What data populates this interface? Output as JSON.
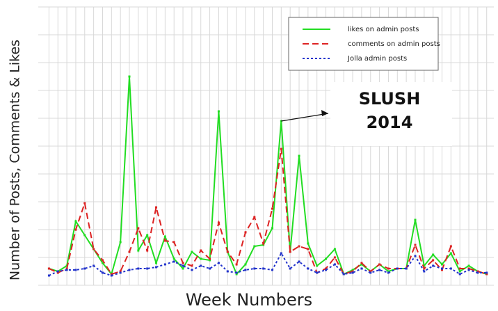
{
  "chart_data": {
    "type": "line",
    "x_label": "Week Numbers",
    "y_label": "Number of Posts, Comments & Likes",
    "annotation": {
      "lines": [
        "SLUSH",
        "2014"
      ],
      "x": 27,
      "y": 5.9
    },
    "x": [
      1,
      2,
      3,
      4,
      5,
      6,
      7,
      8,
      9,
      10,
      11,
      12,
      13,
      14,
      15,
      16,
      17,
      18,
      19,
      20,
      21,
      22,
      23,
      24,
      25,
      26,
      27,
      28,
      29,
      30,
      31,
      32,
      33,
      34,
      35,
      36,
      37,
      38,
      39,
      40,
      41,
      42,
      43,
      44,
      45,
      46,
      47,
      48,
      49,
      50
    ],
    "xlim": [
      -0.2,
      50.8
    ],
    "ylim": [
      0,
      10
    ],
    "yticks": [
      0,
      1,
      2,
      3,
      4,
      5,
      6,
      7,
      8,
      9,
      10
    ],
    "grid": true,
    "legend": "top right",
    "series": [
      {
        "name": "likes on admin posts",
        "color": "#22dd22",
        "dash": "solid",
        "values": [
          0.6,
          0.5,
          0.7,
          2.3,
          1.8,
          1.3,
          0.8,
          0.4,
          1.55,
          7.5,
          1.25,
          1.8,
          0.8,
          1.75,
          0.95,
          0.6,
          1.2,
          0.95,
          0.9,
          6.25,
          1.2,
          0.4,
          0.75,
          1.4,
          1.45,
          2.05,
          5.9,
          1.2,
          4.65,
          1.5,
          0.7,
          0.95,
          1.3,
          0.4,
          0.55,
          0.75,
          0.5,
          0.75,
          0.5,
          0.6,
          0.6,
          2.35,
          0.7,
          1.1,
          0.75,
          1.15,
          0.5,
          0.7,
          0.5,
          0.4
        ]
      },
      {
        "name": "comments on admin posts",
        "color": "#dd2222",
        "dash": "dashed",
        "values": [
          0.6,
          0.45,
          0.6,
          2,
          2.95,
          1.3,
          0.9,
          0.4,
          0.5,
          1.2,
          2.05,
          1.25,
          2.8,
          1.6,
          1.55,
          0.8,
          0.7,
          1.25,
          0.95,
          2.25,
          1.2,
          0.75,
          1.9,
          2.45,
          1.5,
          2.75,
          4.9,
          1.2,
          1.4,
          1.3,
          0.45,
          0.6,
          1,
          0.4,
          0.5,
          0.8,
          0.5,
          0.75,
          0.6,
          0.6,
          0.6,
          1.45,
          0.6,
          0.9,
          0.55,
          1.4,
          0.6,
          0.6,
          0.5,
          0.4
        ]
      },
      {
        "name": "Jolla admin posts",
        "color": "#2233cc",
        "dash": "dotted",
        "values": [
          0.35,
          0.5,
          0.55,
          0.55,
          0.6,
          0.7,
          0.45,
          0.35,
          0.45,
          0.55,
          0.6,
          0.6,
          0.65,
          0.75,
          0.85,
          0.7,
          0.55,
          0.7,
          0.6,
          0.8,
          0.5,
          0.45,
          0.55,
          0.6,
          0.6,
          0.55,
          1.15,
          0.6,
          0.85,
          0.6,
          0.45,
          0.55,
          0.75,
          0.4,
          0.45,
          0.6,
          0.45,
          0.55,
          0.45,
          0.6,
          0.6,
          1.05,
          0.5,
          0.7,
          0.6,
          0.6,
          0.4,
          0.55,
          0.45,
          0.45
        ]
      }
    ]
  }
}
